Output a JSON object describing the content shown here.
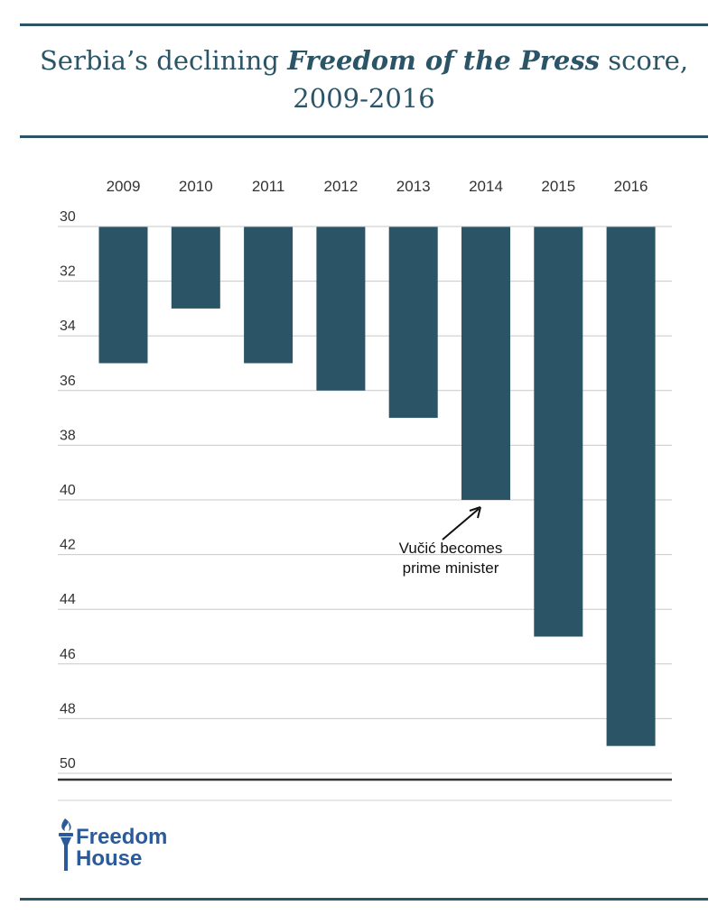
{
  "header": {
    "title_part1": "Serbia’s declining ",
    "title_italic": "Freedom of the Press",
    "title_part2": " score,",
    "title_line2": "2009-2016"
  },
  "chart_data": {
    "type": "bar",
    "categories": [
      "2009",
      "2010",
      "2011",
      "2012",
      "2013",
      "2014",
      "2015",
      "2016"
    ],
    "values": [
      35,
      33,
      35,
      36,
      37,
      40,
      45,
      49
    ],
    "ylim": [
      30,
      50
    ],
    "yticks": [
      30,
      32,
      34,
      36,
      38,
      40,
      42,
      44,
      46,
      48,
      50
    ],
    "y_axis_inverted": true,
    "bar_color": "#2b5566",
    "grid": true,
    "legend": "none",
    "annotation": {
      "category": "2014",
      "lines": [
        "Vučić becomes",
        "prime minister"
      ]
    }
  },
  "footer": {
    "logo_line1": "Freedom",
    "logo_line2": "House",
    "logo_color": "#2a5a9a"
  }
}
